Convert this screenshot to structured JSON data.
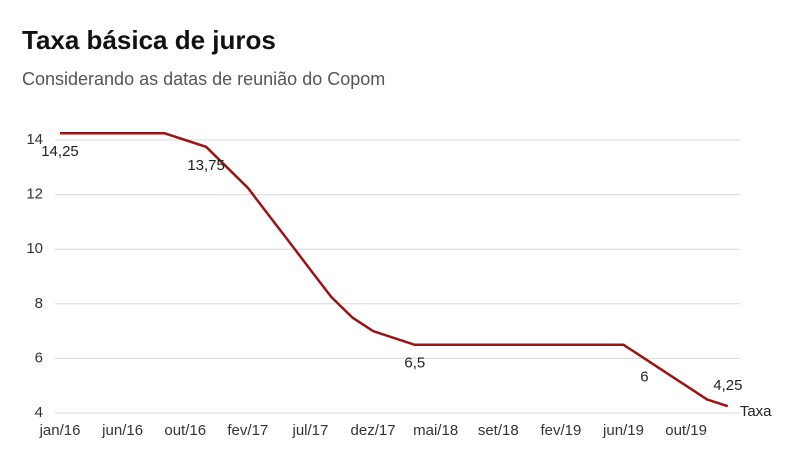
{
  "chart_data": {
    "type": "line",
    "title": "Taxa básica de juros",
    "subtitle": "Considerando as datas de reunião do Copom",
    "categories": [
      "jan/16",
      null,
      null,
      "jun/16",
      null,
      null,
      "out/16",
      null,
      null,
      "fev/17",
      null,
      null,
      "jul/17",
      null,
      null,
      "dez/17",
      null,
      null,
      "mai/18",
      null,
      null,
      "set/18",
      null,
      null,
      "fev/19",
      null,
      null,
      "jun/19",
      null,
      null,
      "out/19",
      null,
      null
    ],
    "series": [
      {
        "name": "Taxa",
        "color": "#9b1414",
        "values": [
          14.25,
          14.25,
          14.25,
          14.25,
          14.25,
          14.25,
          14.0,
          13.75,
          13.0,
          12.25,
          11.25,
          10.25,
          9.25,
          8.25,
          7.5,
          7.0,
          6.75,
          6.5,
          6.5,
          6.5,
          6.5,
          6.5,
          6.5,
          6.5,
          6.5,
          6.5,
          6.5,
          6.5,
          6.0,
          5.5,
          5.0,
          4.5,
          4.25
        ],
        "value_labels": [
          "14,25",
          null,
          null,
          null,
          null,
          null,
          null,
          "13,75",
          null,
          null,
          null,
          null,
          null,
          null,
          null,
          null,
          null,
          "6,5",
          null,
          null,
          null,
          null,
          null,
          null,
          null,
          null,
          null,
          null,
          "6",
          null,
          null,
          null,
          "4,25"
        ]
      }
    ],
    "ylim": [
      4,
      14
    ],
    "yticks": [
      4,
      6,
      8,
      10,
      12,
      14
    ],
    "grid": true
  }
}
